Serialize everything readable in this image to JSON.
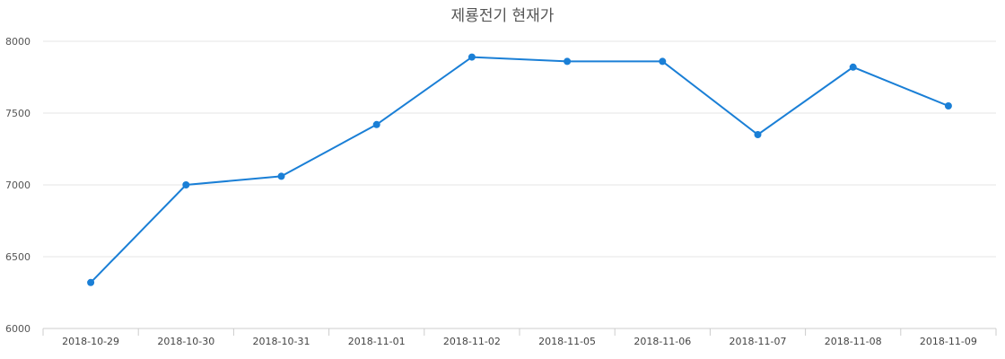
{
  "chart_data": {
    "type": "line",
    "title": "제룡전기 현재가",
    "xlabel": "",
    "ylabel": "",
    "categories": [
      "2018-10-29",
      "2018-10-30",
      "2018-10-31",
      "2018-11-01",
      "2018-11-02",
      "2018-11-05",
      "2018-11-06",
      "2018-11-07",
      "2018-11-08",
      "2018-11-09"
    ],
    "series": [
      {
        "values": [
          6320,
          7000,
          7060,
          7420,
          7890,
          7860,
          7860,
          7350,
          7820,
          7550
        ]
      }
    ],
    "ylim": [
      6000,
      8000
    ],
    "yticks": [
      6000,
      6500,
      7000,
      7500,
      8000
    ],
    "ytick_labels": [
      "6000",
      "6500",
      "7000",
      "7500",
      "8000"
    ],
    "grid": true,
    "legend": "none",
    "colors": {
      "series": "#1a7fd6",
      "grid": "#e6e6e6",
      "axis": "#cccccc"
    }
  }
}
